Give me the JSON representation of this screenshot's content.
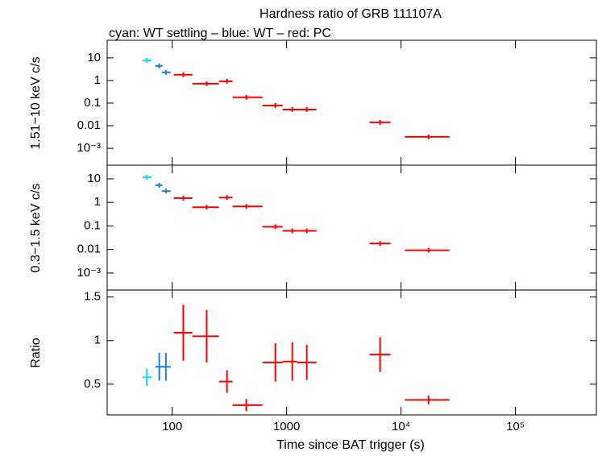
{
  "chart_data": [
    {
      "type": "errorbar",
      "title": "Hardness ratio of GRB 111107A",
      "subtitle": "cyan: WT settling – blue: WT – red: PC",
      "y_label": "1.51−10 keV c/s",
      "ylog": true,
      "ylim": [
        0.00018,
        60
      ],
      "yticks": [
        10,
        1,
        0.1,
        0.01,
        {
          "value": 0.001,
          "label": "10⁻³"
        }
      ],
      "series": [
        {
          "color": "#00e0ff",
          "x": [
            60
          ],
          "x_low": [
            55
          ],
          "x_high": [
            66
          ],
          "values": [
            7.8
          ]
        },
        {
          "color": "#1a7fe0",
          "x": [
            77,
            88
          ],
          "x_low": [
            71,
            81
          ],
          "x_high": [
            82,
            97
          ],
          "values": [
            4.4,
            2.3
          ]
        },
        {
          "color": "#ff0000",
          "x": [
            125,
            200,
            301,
            444,
            797,
            1120,
            1500,
            6560,
            17400
          ],
          "x_low": [
            103,
            150,
            256,
            337,
            615,
            923,
            1233,
            5300,
            10800
          ],
          "x_high": [
            150,
            256,
            337,
            615,
            923,
            1233,
            1823,
            8100,
            26500
          ],
          "values": [
            1.8,
            0.72,
            0.92,
            0.18,
            0.078,
            0.052,
            0.052,
            0.014,
            0.0032
          ]
        }
      ]
    },
    {
      "type": "errorbar",
      "y_label": "0.3−1.5 keV c/s",
      "ylog": true,
      "ylim": [
        0.00019,
        38
      ],
      "yticks": [
        10,
        1,
        0.1,
        0.01,
        {
          "value": 0.001,
          "label": "10⁻³"
        }
      ],
      "series": [
        {
          "color": "#00e0ff",
          "x": [
            60
          ],
          "x_low": [
            55
          ],
          "x_high": [
            66
          ],
          "values": [
            11.7
          ]
        },
        {
          "color": "#1a7fe0",
          "x": [
            77,
            88
          ],
          "x_low": [
            71,
            81
          ],
          "x_high": [
            82,
            97
          ],
          "values": [
            5.3,
            3.0
          ]
        },
        {
          "color": "#ff0000",
          "x": [
            125,
            200,
            301,
            444,
            797,
            1120,
            1500,
            6560,
            17400
          ],
          "x_low": [
            103,
            150,
            256,
            337,
            615,
            923,
            1233,
            5300,
            10800
          ],
          "x_high": [
            150,
            256,
            337,
            615,
            923,
            1233,
            1823,
            8100,
            26500
          ],
          "values": [
            1.5,
            0.62,
            1.6,
            0.67,
            0.092,
            0.062,
            0.062,
            0.018,
            0.0093
          ]
        }
      ]
    },
    {
      "type": "errorbar",
      "y_label": "Ratio",
      "x_label": "Time since BAT trigger (s)",
      "ylog": false,
      "ylim": [
        0.148,
        1.58
      ],
      "yticks": [
        1.5,
        1,
        0.5
      ],
      "xlog": true,
      "xlim": [
        27,
        510000
      ],
      "xticks": [
        100,
        1000,
        {
          "value": 10000,
          "label": "10⁴"
        },
        {
          "value": 100000,
          "label": "10⁵"
        }
      ],
      "series": [
        {
          "color": "#00e0ff",
          "x": [
            60
          ],
          "x_low": [
            55
          ],
          "x_high": [
            66
          ],
          "values": [
            0.58
          ],
          "y_err": [
            0.1
          ]
        },
        {
          "color": "#1a7fe0",
          "x": [
            77,
            88
          ],
          "x_low": [
            71,
            81
          ],
          "x_high": [
            82,
            97
          ],
          "values": [
            0.7,
            0.7
          ],
          "y_err": [
            0.16,
            0.16
          ]
        },
        {
          "color": "#ff0000",
          "x": [
            125,
            200,
            301,
            444,
            797,
            1120,
            1500,
            6560,
            17400
          ],
          "x_low": [
            103,
            150,
            256,
            337,
            615,
            923,
            1233,
            5300,
            10800
          ],
          "x_high": [
            150,
            256,
            337,
            615,
            923,
            1233,
            1823,
            8100,
            26500
          ],
          "values": [
            1.09,
            1.05,
            0.53,
            0.26,
            0.75,
            0.76,
            0.75,
            0.84,
            0.32
          ],
          "y_err": [
            0.32,
            0.3,
            0.13,
            0.07,
            0.22,
            0.22,
            0.2,
            0.2,
            0.05
          ]
        }
      ]
    }
  ]
}
